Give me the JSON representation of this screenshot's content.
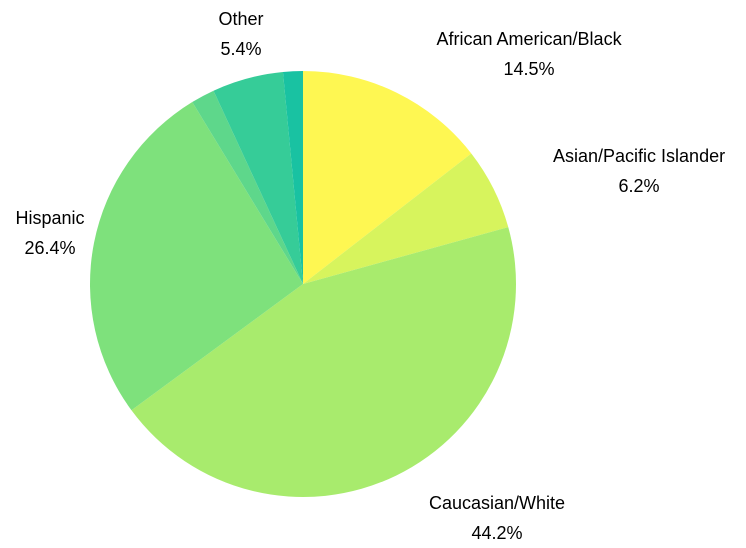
{
  "chart_data": {
    "type": "pie",
    "title": "",
    "slices": [
      {
        "label": "African American/Black",
        "value": 14.5,
        "display": "14.5%",
        "color": "#fef752"
      },
      {
        "label": "Asian/Pacific Islander",
        "value": 6.2,
        "display": "6.2%",
        "color": "#d7f45d"
      },
      {
        "label": "Caucasian/White",
        "value": 44.2,
        "display": "44.2%",
        "color": "#a8eb6d"
      },
      {
        "label": "Hispanic",
        "value": 26.4,
        "display": "26.4%",
        "color": "#7ee17c"
      },
      {
        "label": "",
        "value": 1.8,
        "display": "",
        "color": "#5ed78b"
      },
      {
        "label": "Other",
        "value": 5.4,
        "display": "5.4%",
        "color": "#36cc98"
      },
      {
        "label": "",
        "value": 1.5,
        "display": "",
        "color": "#19c2a2"
      }
    ],
    "start_angle": "12 o'clock",
    "direction": "clockwise",
    "legend": "none"
  }
}
